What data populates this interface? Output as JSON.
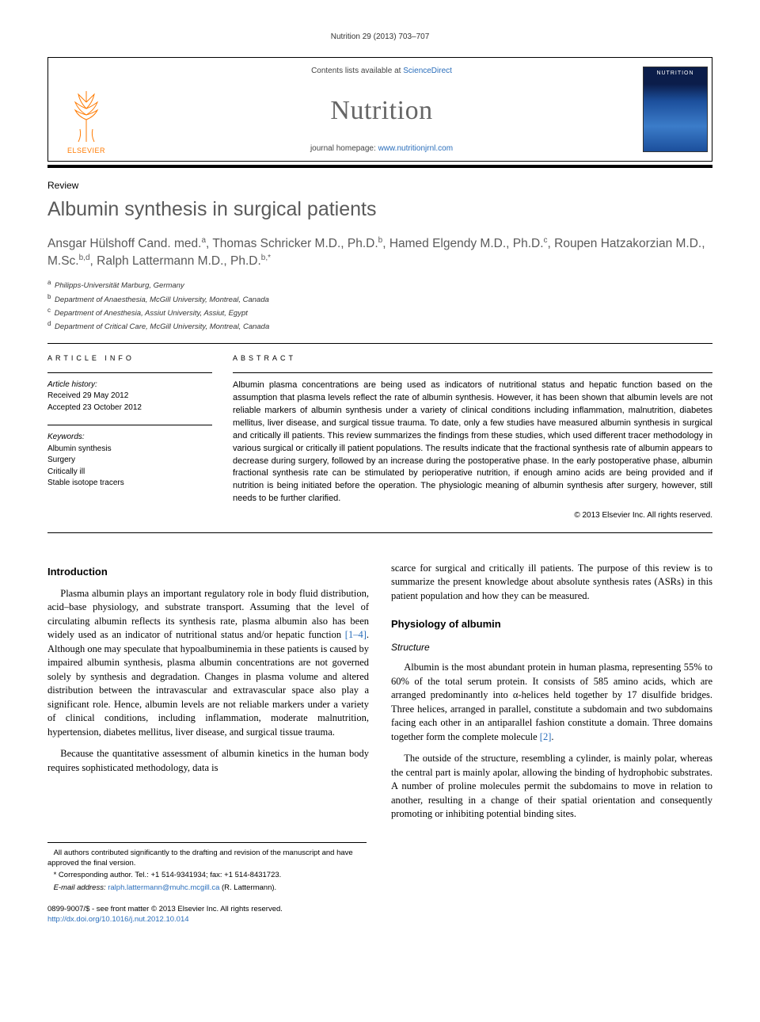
{
  "runningHead": "Nutrition 29 (2013) 703–707",
  "headerBox": {
    "publisherLogoWord": "ELSEVIER",
    "contentsPrefix": "Contents lists available at ",
    "contentsLink": "ScienceDirect",
    "journalName": "Nutrition",
    "homepagePrefix": "journal homepage: ",
    "homepageUrl": "www.nutritionjrnl.com",
    "coverTitle": "NUTRITION"
  },
  "articleType": "Review",
  "title": "Albumin synthesis in surgical patients",
  "authorsHtml": "Ansgar Hülshoff Cand. med.<sup>a</sup>, Thomas Schricker M.D., Ph.D.<sup>b</sup>, Hamed Elgendy M.D., Ph.D.<sup>c</sup>, Roupen Hatzakorzian M.D., M.Sc.<sup>b,d</sup>, Ralph Lattermann M.D., Ph.D.<sup>b,*</sup>",
  "affiliations": [
    {
      "sup": "a",
      "text": "Philipps-Universität Marburg, Germany"
    },
    {
      "sup": "b",
      "text": "Department of Anaesthesia, McGill University, Montreal, Canada"
    },
    {
      "sup": "c",
      "text": "Department of Anesthesia, Assiut University, Assiut, Egypt"
    },
    {
      "sup": "d",
      "text": "Department of Critical Care, McGill University, Montreal, Canada"
    }
  ],
  "articleInfo": {
    "head": "ARTICLE INFO",
    "historyLabel": "Article history:",
    "received": "Received 29 May 2012",
    "accepted": "Accepted 23 October 2012",
    "keywordsLabel": "Keywords:",
    "keywords": [
      "Albumin synthesis",
      "Surgery",
      "Critically ill",
      "Stable isotope tracers"
    ]
  },
  "abstract": {
    "head": "ABSTRACT",
    "text": "Albumin plasma concentrations are being used as indicators of nutritional status and hepatic function based on the assumption that plasma levels reflect the rate of albumin synthesis. However, it has been shown that albumin levels are not reliable markers of albumin synthesis under a variety of clinical conditions including inflammation, malnutrition, diabetes mellitus, liver disease, and surgical tissue trauma. To date, only a few studies have measured albumin synthesis in surgical and critically ill patients. This review summarizes the findings from these studies, which used different tracer methodology in various surgical or critically ill patient populations. The results indicate that the fractional synthesis rate of albumin appears to decrease during surgery, followed by an increase during the postoperative phase. In the early postoperative phase, albumin fractional synthesis rate can be stimulated by perioperative nutrition, if enough amino acids are being provided and if nutrition is being initiated before the operation. The physiologic meaning of albumin synthesis after surgery, however, still needs to be further clarified.",
    "copyright": "© 2013 Elsevier Inc. All rights reserved."
  },
  "body": {
    "introHead": "Introduction",
    "introP1Pre": "Plasma albumin plays an important regulatory role in body fluid distribution, acid–base physiology, and substrate transport. Assuming that the level of circulating albumin reflects its synthesis rate, plasma albumin also has been widely used as an indicator of nutritional status and/or hepatic function ",
    "introRef1": "[1–4]",
    "introP1Post": ". Although one may speculate that hypoalbuminemia in these patients is caused by impaired albumin synthesis, plasma albumin concentrations are not governed solely by synthesis and degradation. Changes in plasma volume and altered distribution between the intravascular and extravascular space also play a significant role. Hence, albumin levels are not reliable markers under a variety of clinical conditions, including inflammation, moderate malnutrition, hypertension, diabetes mellitus, liver disease, and surgical tissue trauma.",
    "introP2": "Because the quantitative assessment of albumin kinetics in the human body requires sophisticated methodology, data is",
    "introP3": "scarce for surgical and critically ill patients. The purpose of this review is to summarize the present knowledge about absolute synthesis rates (ASRs) in this patient population and how they can be measured.",
    "physHead": "Physiology of albumin",
    "structHead": "Structure",
    "structP1Pre": "Albumin is the most abundant protein in human plasma, representing 55% to 60% of the total serum protein. It consists of 585 amino acids, which are arranged predominantly into α-helices held together by 17 disulfide bridges. Three helices, arranged in parallel, constitute a subdomain and two subdomains facing each other in an antiparallel fashion constitute a domain. Three domains together form the complete molecule ",
    "structRef2": "[2]",
    "structP1Post": ".",
    "structP2": "The outside of the structure, resembling a cylinder, is mainly polar, whereas the central part is mainly apolar, allowing the binding of hydrophobic substrates. A number of proline molecules permit the subdomains to move in relation to another, resulting in a change of their spatial orientation and consequently promoting or inhibiting potential binding sites."
  },
  "footnotes": {
    "contrib": "All authors contributed significantly to the drafting and revision of the manuscript and have approved the final version.",
    "corrPrefix": "* Corresponding author. Tel.: ",
    "tel": "+1 514-9341934",
    "faxPrefix": "; fax: ",
    "fax": "+1 514-8431723",
    "emailLabel": "E-mail address: ",
    "email": "ralph.lattermann@muhc.mcgill.ca",
    "emailName": " (R. Lattermann)."
  },
  "bottom": {
    "leftLine1": "0899-9007/$ - see front matter © 2013 Elsevier Inc. All rights reserved.",
    "doiUrl": "http://dx.doi.org/10.1016/j.nut.2012.10.014"
  },
  "colors": {
    "elsevierOrange": "#ff7a00",
    "linkBlue": "#2a6ebb",
    "titleGrey": "#5a5a5a"
  }
}
